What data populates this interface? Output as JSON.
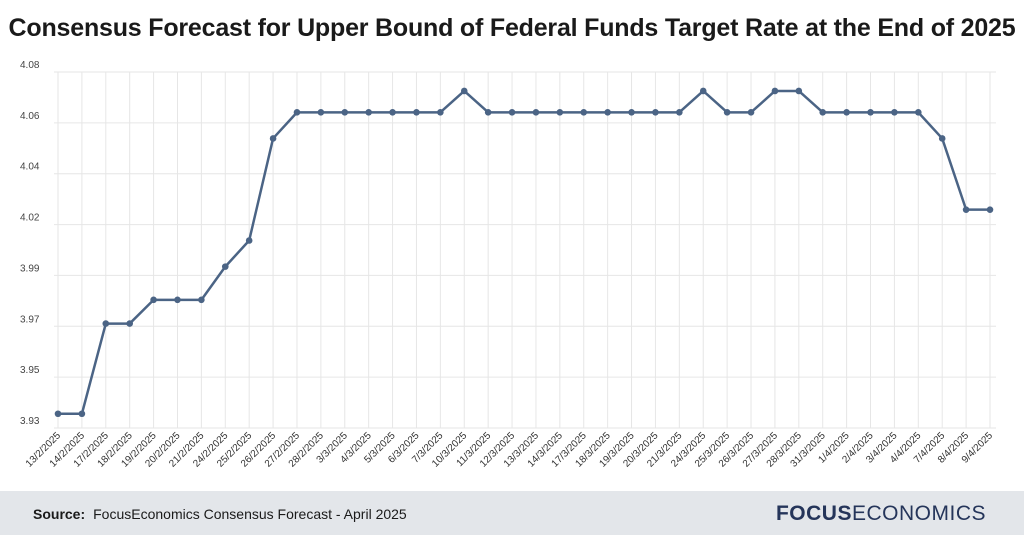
{
  "chart_data": {
    "type": "line",
    "title": "Consensus Forecast for Upper Bound of Federal Funds Target Rate at the End of 2025",
    "xlabel": "",
    "ylabel": "",
    "y_tick_labels": [
      "4.08",
      "4.06",
      "4.04",
      "4.02",
      "3.99",
      "3.97",
      "3.95",
      "3.93"
    ],
    "ylim": [
      3.93,
      4.08
    ],
    "grid": true,
    "line_color": "#4b6485",
    "categories": [
      "13/2/2025",
      "14/2/2025",
      "17/2/2025",
      "18/2/2025",
      "19/2/2025",
      "20/2/2025",
      "21/2/2025",
      "24/2/2025",
      "25/2/2025",
      "26/2/2025",
      "27/2/2025",
      "28/2/2025",
      "3/3/2025",
      "4/3/2025",
      "5/3/2025",
      "6/3/2025",
      "7/3/2025",
      "10/3/2025",
      "11/3/2025",
      "12/3/2025",
      "13/3/2025",
      "14/3/2025",
      "17/3/2025",
      "18/3/2025",
      "19/3/2025",
      "20/3/2025",
      "21/3/2025",
      "24/3/2025",
      "25/3/2025",
      "26/3/2025",
      "27/3/2025",
      "28/3/2025",
      "31/3/2025",
      "1/4/2025",
      "2/4/2025",
      "3/4/2025",
      "4/4/2025",
      "7/4/2025",
      "8/4/2025",
      "9/4/2025"
    ],
    "series": [
      {
        "values": [
          3.936,
          3.936,
          3.974,
          3.974,
          3.984,
          3.984,
          3.984,
          3.998,
          4.009,
          4.052,
          4.063,
          4.063,
          4.063,
          4.063,
          4.063,
          4.063,
          4.063,
          4.072,
          4.063,
          4.063,
          4.063,
          4.063,
          4.063,
          4.063,
          4.063,
          4.063,
          4.063,
          4.072,
          4.063,
          4.063,
          4.072,
          4.072,
          4.063,
          4.063,
          4.063,
          4.063,
          4.063,
          4.052,
          4.022,
          4.022
        ]
      }
    ]
  },
  "footer": {
    "source_label": "Source:",
    "source_text": "FocusEconomics Consensus Forecast - April 2025",
    "brand_bold": "FOCUS",
    "brand_light": "ECONOMICS"
  }
}
